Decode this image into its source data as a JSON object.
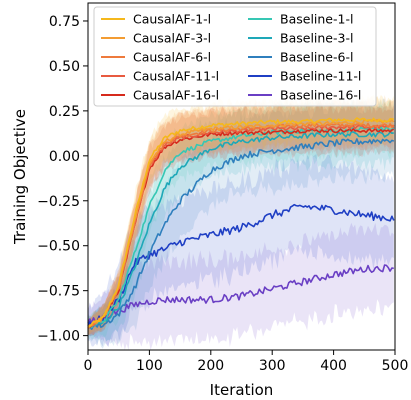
{
  "chart_data": {
    "type": "line",
    "title": "",
    "xlabel": "Iteration",
    "ylabel": "Training Objective",
    "xlim": [
      0,
      500
    ],
    "ylim": [
      -1.08,
      0.85
    ],
    "xticks": [
      0,
      100,
      200,
      300,
      400,
      500
    ],
    "xtick_labels": [
      "0",
      "100",
      "200",
      "300",
      "400",
      "500"
    ],
    "yticks": [
      -1.0,
      -0.75,
      -0.5,
      -0.25,
      0.0,
      0.25,
      0.5,
      0.75
    ],
    "ytick_labels": [
      "−1.00",
      "−0.75",
      "−0.50",
      "−0.25",
      "0.00",
      "0.25",
      "0.50",
      "0.75"
    ],
    "grid": false,
    "legend_position": "top",
    "series": [
      {
        "name": "CausalAF-1-l",
        "color": "#f5b81c",
        "band": 0.12,
        "x": [
          0,
          25,
          50,
          75,
          100,
          125,
          150,
          200,
          250,
          300,
          350,
          400,
          450,
          500
        ],
        "y": [
          -0.95,
          -0.9,
          -0.72,
          -0.35,
          -0.02,
          0.1,
          0.14,
          0.17,
          0.18,
          0.19,
          0.19,
          0.2,
          0.2,
          0.2
        ]
      },
      {
        "name": "CausalAF-3-l",
        "color": "#f39c32",
        "band": 0.12,
        "x": [
          0,
          25,
          50,
          75,
          100,
          125,
          150,
          200,
          250,
          300,
          350,
          400,
          450,
          500
        ],
        "y": [
          -0.95,
          -0.9,
          -0.73,
          -0.37,
          -0.04,
          0.08,
          0.12,
          0.15,
          0.16,
          0.17,
          0.18,
          0.18,
          0.19,
          0.19
        ]
      },
      {
        "name": "CausalAF-6-l",
        "color": "#ee7a3c",
        "band": 0.12,
        "x": [
          0,
          25,
          50,
          75,
          100,
          125,
          150,
          200,
          250,
          300,
          350,
          400,
          450,
          500
        ],
        "y": [
          -0.95,
          -0.9,
          -0.74,
          -0.38,
          -0.05,
          0.07,
          0.11,
          0.14,
          0.15,
          0.16,
          0.17,
          0.17,
          0.17,
          0.17
        ]
      },
      {
        "name": "CausalAF-11-l",
        "color": "#e85a40",
        "band": 0.12,
        "x": [
          0,
          25,
          50,
          75,
          100,
          125,
          150,
          200,
          250,
          300,
          350,
          400,
          450,
          500
        ],
        "y": [
          -0.95,
          -0.9,
          -0.74,
          -0.39,
          -0.06,
          0.06,
          0.1,
          0.13,
          0.14,
          0.15,
          0.15,
          0.16,
          0.16,
          0.16
        ]
      },
      {
        "name": "CausalAF-16-l",
        "color": "#d62a1c",
        "band": 0.12,
        "x": [
          0,
          25,
          50,
          75,
          100,
          125,
          150,
          200,
          250,
          300,
          350,
          400,
          450,
          500
        ],
        "y": [
          -0.95,
          -0.9,
          -0.75,
          -0.4,
          -0.07,
          0.05,
          0.09,
          0.12,
          0.13,
          0.13,
          0.14,
          0.14,
          0.14,
          0.14
        ]
      },
      {
        "name": "Baseline-1-l",
        "color": "#36c7b4",
        "band": 0.14,
        "x": [
          0,
          25,
          50,
          75,
          100,
          125,
          150,
          200,
          250,
          300,
          350,
          400,
          450,
          500
        ],
        "y": [
          -0.95,
          -0.92,
          -0.8,
          -0.55,
          -0.28,
          -0.08,
          0.02,
          0.08,
          0.11,
          0.13,
          0.14,
          0.14,
          0.15,
          0.15
        ]
      },
      {
        "name": "Baseline-3-l",
        "color": "#1ea8b8",
        "band": 0.16,
        "x": [
          0,
          25,
          50,
          75,
          100,
          125,
          150,
          200,
          250,
          300,
          350,
          400,
          450,
          500
        ],
        "y": [
          -0.95,
          -0.93,
          -0.84,
          -0.63,
          -0.38,
          -0.18,
          -0.06,
          0.04,
          0.08,
          0.1,
          0.11,
          0.12,
          0.12,
          0.12
        ]
      },
      {
        "name": "Baseline-6-l",
        "color": "#2f7fbd",
        "band": 0.2,
        "x": [
          0,
          25,
          50,
          75,
          100,
          125,
          150,
          200,
          250,
          300,
          350,
          400,
          450,
          500
        ],
        "y": [
          -0.95,
          -0.94,
          -0.88,
          -0.74,
          -0.54,
          -0.38,
          -0.25,
          -0.08,
          0.0,
          0.03,
          0.05,
          0.07,
          0.08,
          0.09
        ]
      },
      {
        "name": "Baseline-11-l",
        "color": "#1f3fc4",
        "band": 0.25,
        "x": [
          0,
          25,
          50,
          75,
          100,
          125,
          150,
          200,
          250,
          300,
          350,
          400,
          450,
          500
        ],
        "y": [
          -0.95,
          -0.9,
          -0.8,
          -0.6,
          -0.55,
          -0.52,
          -0.48,
          -0.44,
          -0.4,
          -0.33,
          -0.28,
          -0.3,
          -0.33,
          -0.35
        ]
      },
      {
        "name": "Baseline-16-l",
        "color": "#6a3fc4",
        "band": 0.22,
        "x": [
          0,
          25,
          50,
          75,
          100,
          125,
          150,
          200,
          250,
          300,
          350,
          400,
          450,
          500
        ],
        "y": [
          -0.93,
          -0.9,
          -0.86,
          -0.83,
          -0.81,
          -0.8,
          -0.8,
          -0.8,
          -0.78,
          -0.74,
          -0.7,
          -0.66,
          -0.63,
          -0.62
        ]
      }
    ]
  }
}
